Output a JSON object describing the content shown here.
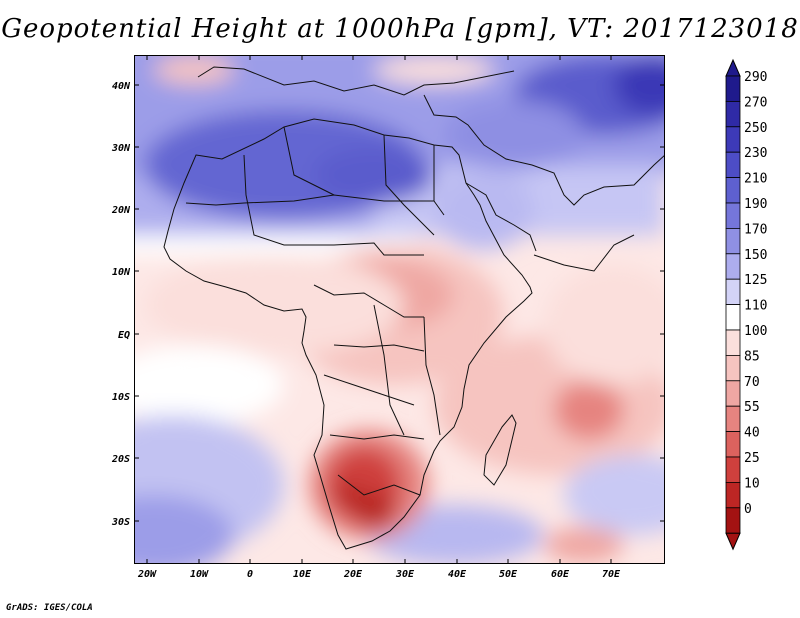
{
  "title": "Geopotential Height at 1000hPa [gpm], VT: 2017123018",
  "map": {
    "region": "Africa",
    "lat_ticks": [
      "40N",
      "30N",
      "20N",
      "10N",
      "EQ",
      "10S",
      "20S",
      "30S"
    ],
    "lon_ticks": [
      "20W",
      "10W",
      "0",
      "10E",
      "20E",
      "30E",
      "40E",
      "50E",
      "60E",
      "70E"
    ]
  },
  "colorbar": {
    "levels": [
      "290",
      "270",
      "250",
      "230",
      "210",
      "190",
      "170",
      "150",
      "125",
      "110",
      "100",
      "85",
      "70",
      "55",
      "40",
      "25",
      "10",
      "0"
    ],
    "colors": [
      "#1f1a8c",
      "#2f2aa6",
      "#3d3ab8",
      "#4d4dc6",
      "#5e60d0",
      "#7576da",
      "#8f90e3",
      "#adadee",
      "#d3d3f7",
      "#ffffff",
      "#fbdfdc",
      "#f6c4c0",
      "#efa7a3",
      "#e68480",
      "#dc625e",
      "#cf403d",
      "#bd2624",
      "#a31212"
    ]
  },
  "footer": "GrADS: IGES/COLA"
}
